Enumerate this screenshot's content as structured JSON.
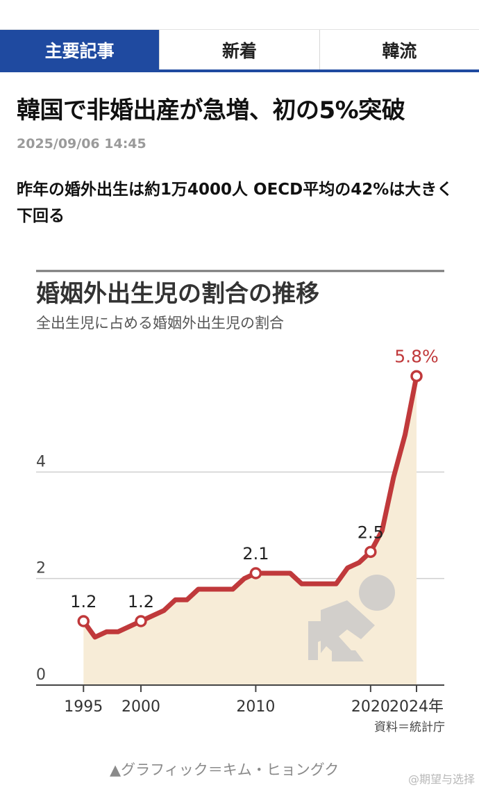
{
  "tabs": [
    {
      "label": "主要記事",
      "active": true
    },
    {
      "label": "新着",
      "active": false
    },
    {
      "label": "韓流",
      "active": false
    }
  ],
  "article": {
    "headline": "韓国で非婚出産が急増、初の5%突破",
    "timestamp": "2025/09/06 14:45",
    "subhead": "昨年の婚外出生は約1万4000人 OECD平均の42%は大きく下回る",
    "credit": "▲グラフィック＝キム・ヒョングク",
    "watermark": "@期望与选择"
  },
  "colors": {
    "tab_active": "#1f4aa0",
    "line": "#c0393b",
    "area": "#f7ecd7",
    "icon": "#d2cfcb"
  },
  "chart_data": {
    "type": "area",
    "title": "婚姻外出生児の割合の推移",
    "subtitle": "全出生児に占める婚姻外出生児の割合",
    "source": "資料＝統計庁",
    "x_tick_labels": [
      "1995",
      "2000",
      "2010",
      "2020",
      "2024年"
    ],
    "x_ticks": [
      1995,
      2000,
      2010,
      2020,
      2024
    ],
    "y_tick_labels": [
      "0",
      "2",
      "4"
    ],
    "y_ticks": [
      0,
      2,
      4
    ],
    "xlim": [
      1994.5,
      2024
    ],
    "ylim": [
      0,
      6.6
    ],
    "grid": true,
    "series": [
      {
        "x": [
          1995,
          1996,
          1997,
          1998,
          1999,
          2000,
          2001,
          2002,
          2003,
          2004,
          2005,
          2006,
          2007,
          2008,
          2009,
          2010,
          2011,
          2012,
          2013,
          2014,
          2015,
          2016,
          2017,
          2018,
          2019,
          2020,
          2021,
          2022,
          2023,
          2024
        ],
        "values": [
          1.2,
          0.9,
          1.0,
          1.0,
          1.1,
          1.2,
          1.3,
          1.4,
          1.6,
          1.6,
          1.8,
          1.8,
          1.8,
          1.8,
          2.0,
          2.1,
          2.1,
          2.1,
          2.1,
          1.9,
          1.9,
          1.9,
          1.9,
          2.2,
          2.3,
          2.5,
          2.9,
          3.9,
          4.7,
          5.8
        ]
      }
    ],
    "annotations": [
      {
        "x": 1995,
        "y": 1.2,
        "label": "1.2"
      },
      {
        "x": 2000,
        "y": 1.2,
        "label": "1.2"
      },
      {
        "x": 2010,
        "y": 2.1,
        "label": "2.1"
      },
      {
        "x": 2020,
        "y": 2.5,
        "label": "2.5"
      },
      {
        "x": 2024,
        "y": 5.8,
        "label": "5.8%"
      }
    ]
  }
}
